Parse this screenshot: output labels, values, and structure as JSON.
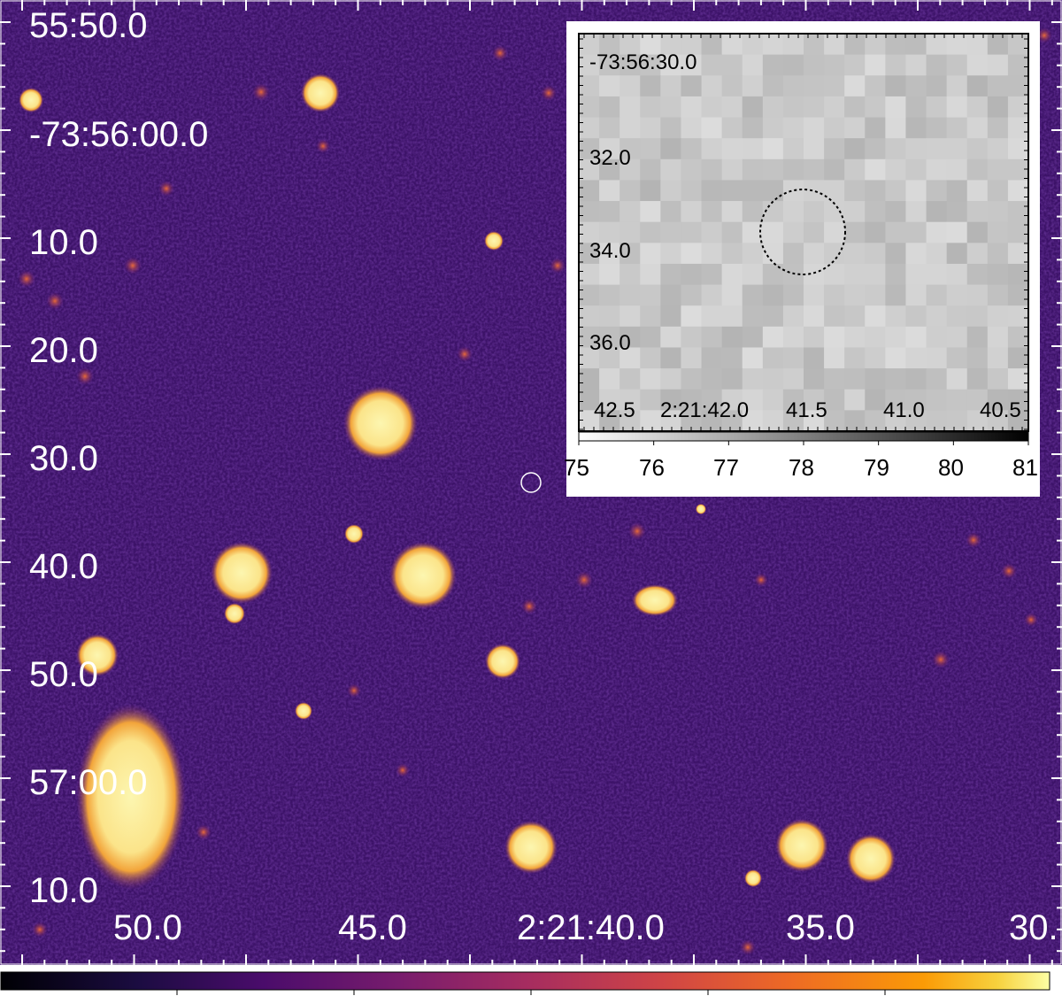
{
  "colors": {
    "sky_background": "#3c1268",
    "source": "#fcf2a2",
    "halo": "#f2a43a",
    "inset_background": "#c9c9c9"
  },
  "main_image": {
    "ra_labels": [
      "50.0",
      "45.0",
      "2:21:40.0",
      "35.0",
      "30."
    ],
    "dec_labels": [
      "55:50.0",
      "-73:56:00.0",
      "10.0",
      "20.0",
      "30.0",
      "40.0",
      "50.0",
      "57:00.0",
      "10.0"
    ],
    "colorbar": {
      "colormap": "inferno",
      "tick_labels": []
    }
  },
  "inset": {
    "dec_labels": [
      "-73:56:30.0",
      "32.0",
      "34.0",
      "36.0"
    ],
    "ra_labels": [
      "42.5",
      "2:21:42.0",
      "41.5",
      "41.0",
      "40.5"
    ],
    "colorbar": {
      "colormap": "gray",
      "tick_labels": [
        "75",
        "76",
        "77",
        "78",
        "79",
        "80",
        "81"
      ]
    }
  }
}
